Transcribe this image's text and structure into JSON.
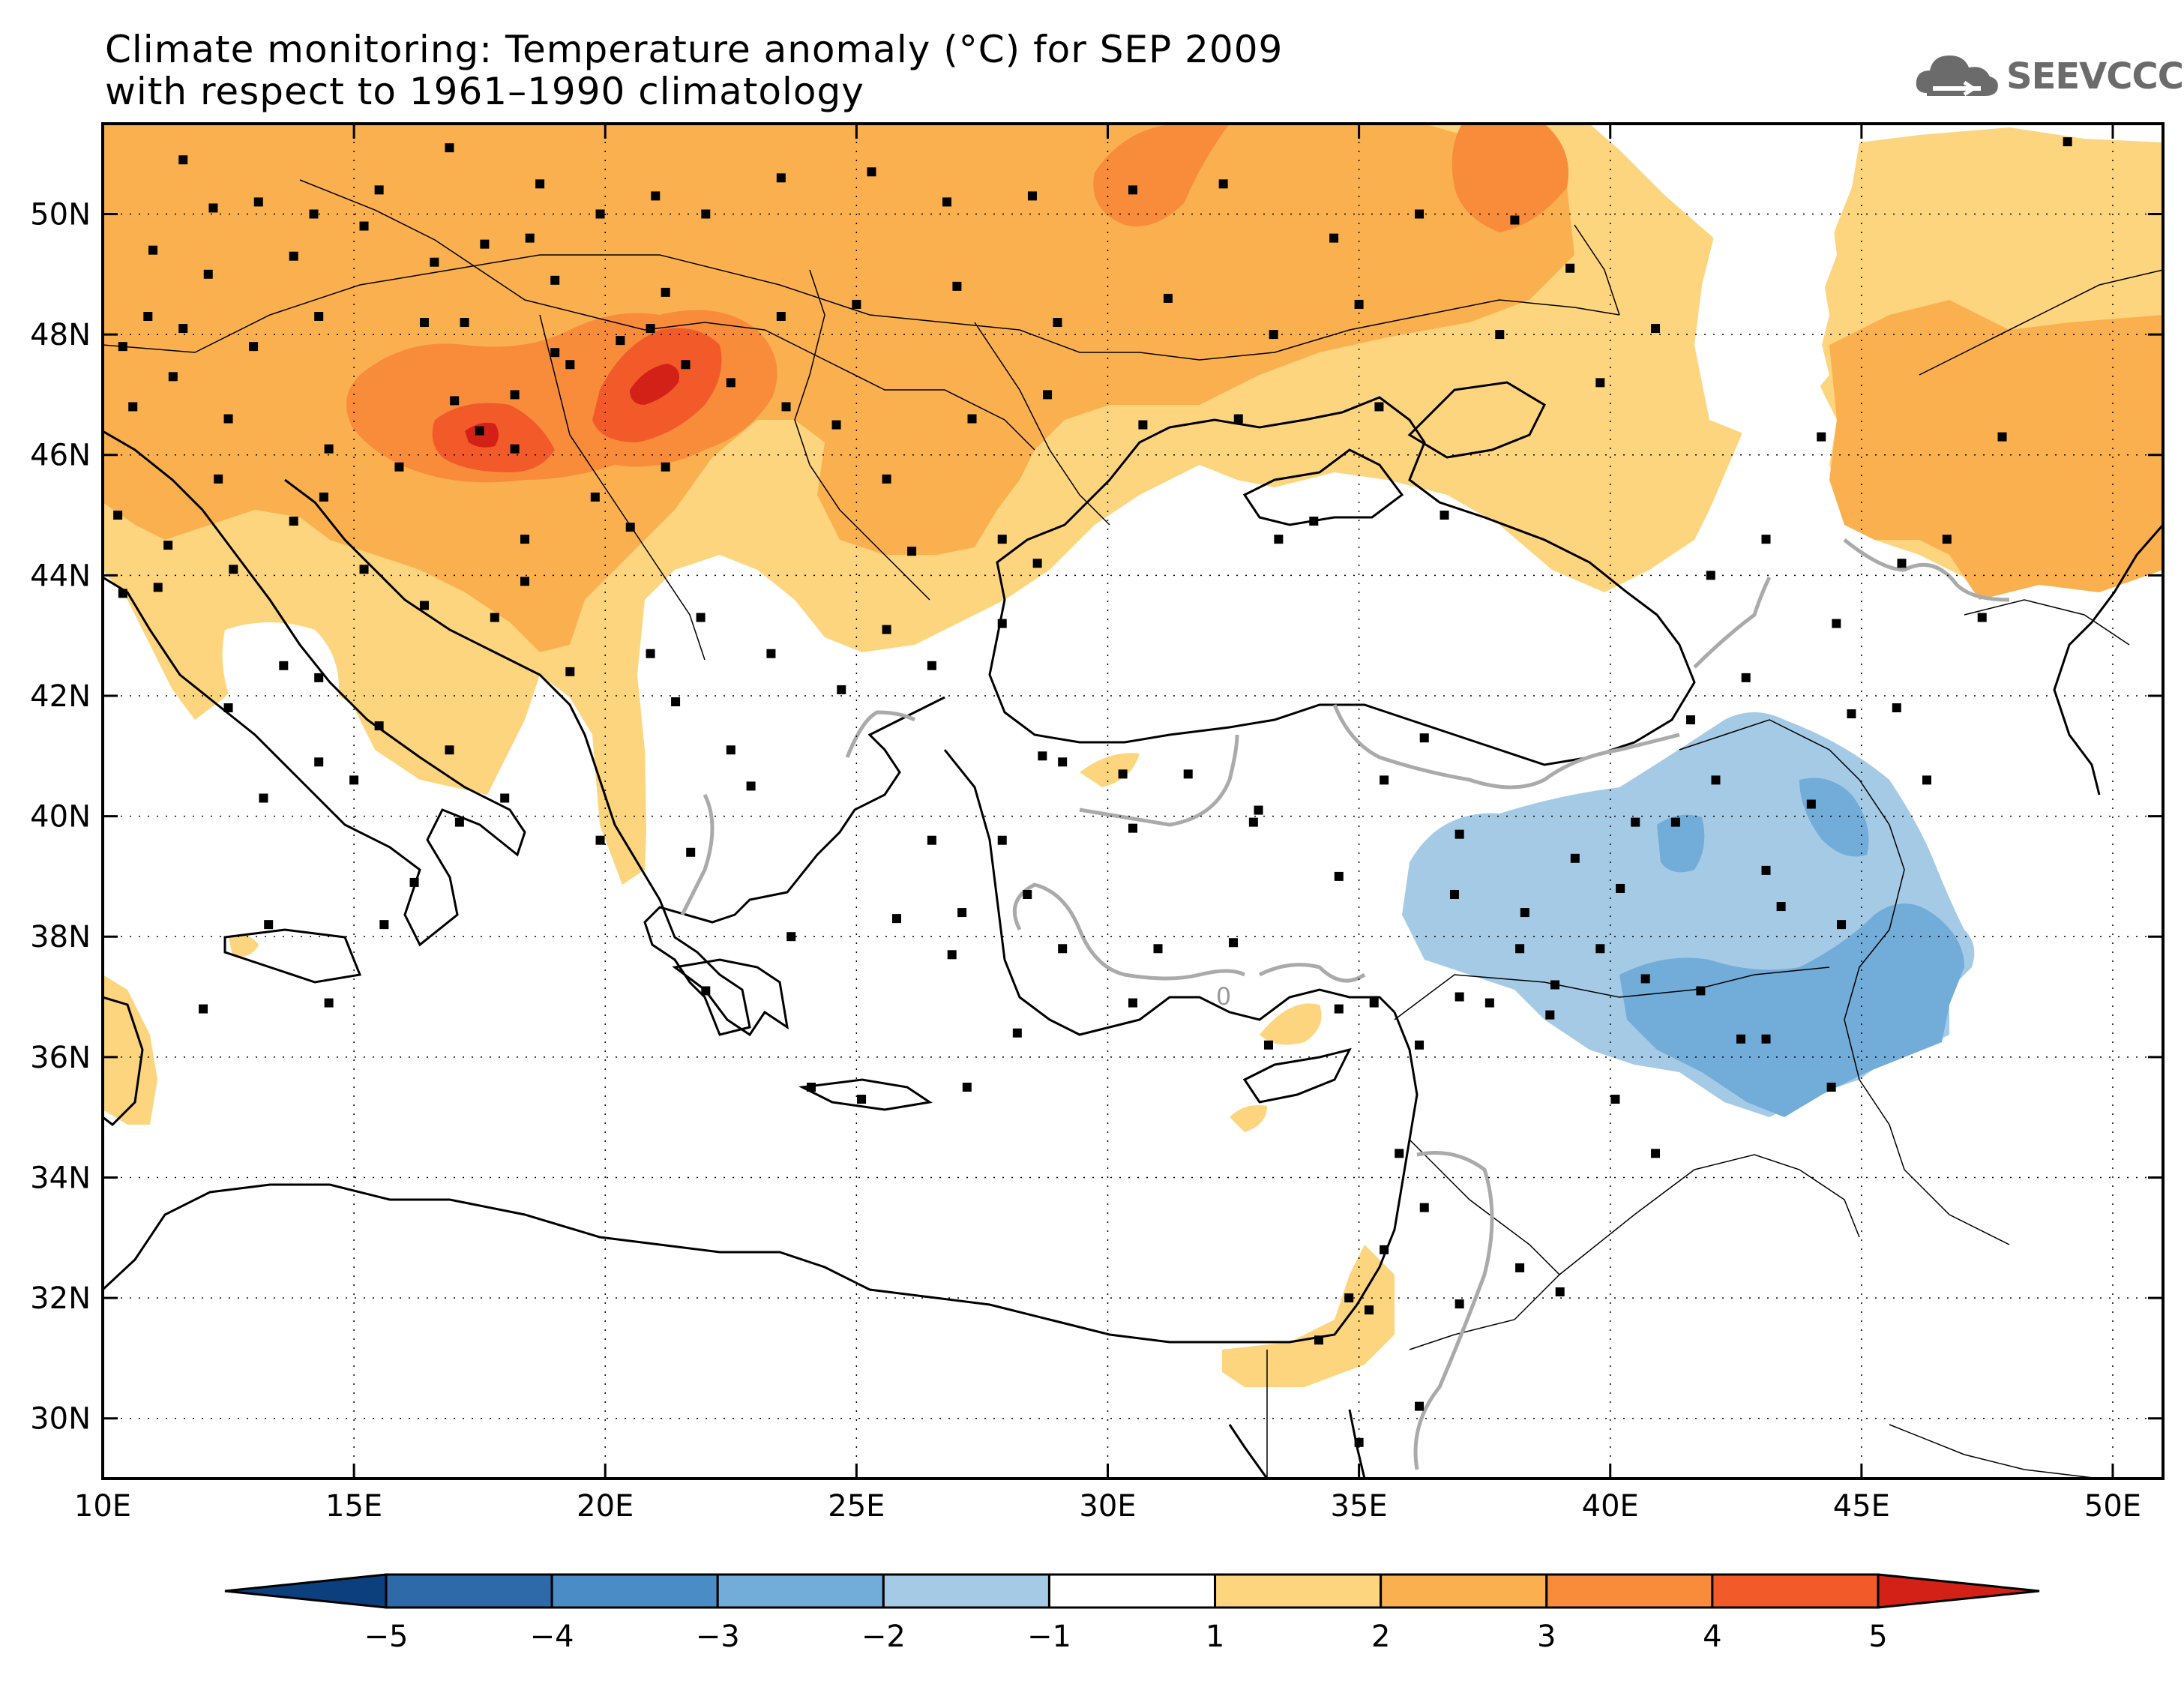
{
  "title": {
    "line1": "Climate monitoring: Temperature anomaly (°C) for SEP 2009",
    "line2": "with respect to 1961–1990 climatology"
  },
  "logo": {
    "text": "SEEVCCC",
    "icon": "cloud-icon"
  },
  "map": {
    "lon_range": [
      10,
      51
    ],
    "lat_range": [
      29,
      51.5
    ],
    "x_ticks": [
      "10E",
      "15E",
      "20E",
      "25E",
      "30E",
      "35E",
      "40E",
      "45E",
      "50E"
    ],
    "y_ticks": [
      "30N",
      "32N",
      "34N",
      "36N",
      "38N",
      "40N",
      "42N",
      "44N",
      "46N",
      "48N",
      "50N"
    ],
    "contour_label": "0"
  },
  "colorbar": {
    "labels": [
      "-5",
      "-4",
      "-3",
      "-2",
      "-1",
      "1",
      "2",
      "3",
      "4",
      "5"
    ],
    "colors": [
      "#0b3f7d",
      "#2e6aaa",
      "#4a8cc5",
      "#72acd8",
      "#a5cae6",
      "#ffffff",
      "#fdd57e",
      "#fbb04f",
      "#f88c3b",
      "#f25a2a",
      "#d42118"
    ]
  },
  "colors": {
    "positive_1_2": "#fdd57e",
    "positive_2_3": "#fbb04f",
    "positive_3_4": "#f88c3b",
    "positive_4_5": "#f25a2a",
    "positive_5p": "#d42118",
    "negative_1_2": "#a5cae6",
    "negative_2_3": "#72acd8",
    "contour_zero": "#aaaaaa",
    "station": "#000000"
  }
}
